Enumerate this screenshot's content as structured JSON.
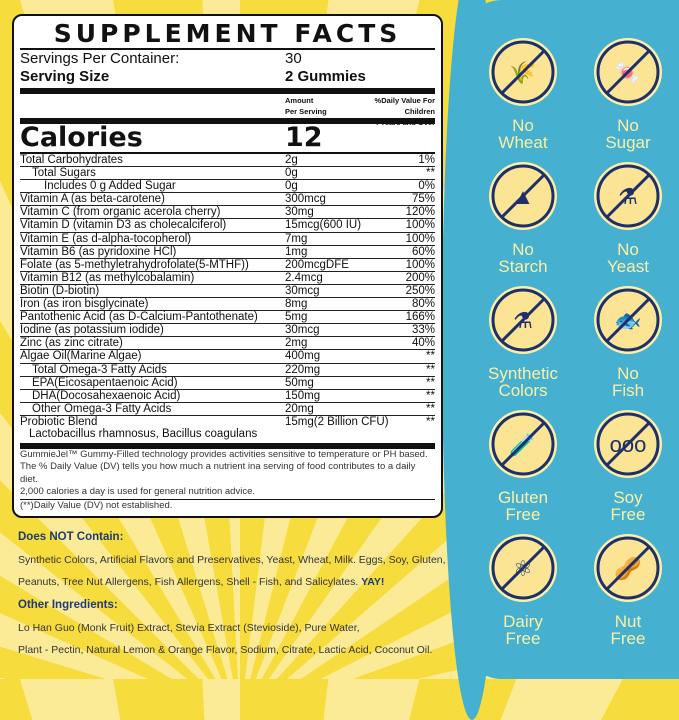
{
  "facts": {
    "title": "SUPPLEMENT FACTS",
    "servings_label": "Servings Per Container:",
    "servings_value": "30",
    "serving_size_label": "Serving Size",
    "serving_size_value": "2  Gummies",
    "amount_header": "Amount\nPer Serving",
    "dv_header_1": "%Daily Value For Children",
    "dv_header_2": "4 Years and Over",
    "calories_label": "Calories",
    "calories_value": "12",
    "rows": [
      {
        "name": "Total Carbohydrates",
        "amount": "2g",
        "dv": "1%",
        "indent": 0
      },
      {
        "name": "Total Sugars",
        "amount": "0g",
        "dv": "**",
        "indent": 1
      },
      {
        "name": "Includes 0 g Added Sugar",
        "amount": "0g",
        "dv": "0%",
        "indent": 2
      },
      {
        "name": "Vitamin A (as beta-carotene)",
        "amount": "300mcg",
        "dv": "75%",
        "indent": 0
      },
      {
        "name": "Vitamin C (from organic acerola cherry)",
        "amount": "30mg",
        "dv": "120%",
        "indent": 0
      },
      {
        "name": "Vitamin D (vitamin D3 as cholecalciferol)",
        "amount": "15mcg(600 IU)",
        "dv": "100%",
        "indent": 0
      },
      {
        "name": "Vitamin E (as d-alpha-tocopherol)",
        "amount": "7mg",
        "dv": "100%",
        "indent": 0
      },
      {
        "name": "Vitamin B6 (as pyridoxine HCl)",
        "amount": "1mg",
        "dv": "60%",
        "indent": 0
      },
      {
        "name": "Folate (as 5-methyletrahydrofolate(5-MTHF))",
        "amount": "200mcgDFE",
        "dv": "100%",
        "indent": 0
      },
      {
        "name": "Vitamin B12 (as methylcobalamin)",
        "amount": "2.4mcg",
        "dv": "200%",
        "indent": 0
      },
      {
        "name": "Biotin (D-biotin)",
        "amount": "30mcg",
        "dv": "250%",
        "indent": 0
      },
      {
        "name": "Iron (as iron bisglycinate)",
        "amount": "8mg",
        "dv": "80%",
        "indent": 0
      },
      {
        "name": "Pantothenic Acid (as D-Calcium-Pantothenate)",
        "amount": "5mg",
        "dv": "166%",
        "indent": 0
      },
      {
        "name": "Iodine (as potassium iodide)",
        "amount": "30mcg",
        "dv": "33%",
        "indent": 0
      },
      {
        "name": "Zinc (as zinc citrate)",
        "amount": "2mg",
        "dv": "40%",
        "indent": 0
      },
      {
        "name": "Algae Oil(Marine Algae)",
        "amount": "400mg",
        "dv": "**",
        "indent": 0
      },
      {
        "name": "Total Omega-3 Fatty Acids",
        "amount": "220mg",
        "dv": "**",
        "indent": 1
      },
      {
        "name": "EPA(Eicosapentaenoic Acid)",
        "amount": "50mg",
        "dv": "**",
        "indent": 1
      },
      {
        "name": "DHA(Docosahexaenoic Acid)",
        "amount": "150mg",
        "dv": "**",
        "indent": 1
      },
      {
        "name": "Other Omega-3 Fatty Acids",
        "amount": "20mg",
        "dv": "**",
        "indent": 1
      }
    ],
    "probiotic_name": "Probiotic Blend",
    "probiotic_sub": "Lactobacillus rhamnosus, Bacillus coagulans",
    "probiotic_amount": "15mg(2 Billion CFU)",
    "probiotic_dv": "**",
    "footnote_1": "GummieJel™ Gummy-Filled technology provides activities sensitive to temperature or PH based.",
    "footnote_2": "The % Daily Value (DV) tells you how much a nutrient ina serving of food contributes to a daily diet.",
    "footnote_3": "2,000 calories a day is used for general nutrition advice.",
    "footnote_4": "(**)Daily Value (DV) not established."
  },
  "does_not_contain": {
    "heading": "Does NOT Contain:",
    "text": "Synthetic Colors, Artificial Flavors and Preservatives, Yeast, Wheat, Milk. Eggs, Soy, Gluten, Peanuts, Tree Nut Allergens, Fish Allergens, Shell - Fish, and Salicylates.",
    "yay": "YAY!"
  },
  "other_ingredients": {
    "heading": "Other Ingredients:",
    "line1": "Lo Han Guo (Monk Fruit) Extract, Stevia Extract (Stevioside), Pure Water,",
    "line2": "Plant - Pectin, Natural Lemon & Orange Flavor, Sodium, Citrate,  Lactic Acid, Coconut Oil."
  },
  "badges": [
    {
      "l1": "No",
      "l2": "Wheat",
      "icon": "wheat-icon",
      "glyph": "🌾"
    },
    {
      "l1": "No",
      "l2": "Sugar",
      "icon": "candy-icon",
      "glyph": "🍬"
    },
    {
      "l1": "No",
      "l2": "Starch",
      "icon": "starch-pile-icon",
      "glyph": "▲"
    },
    {
      "l1": "No",
      "l2": "Yeast",
      "icon": "flask-icon",
      "glyph": "⚗"
    },
    {
      "l1": "Synthetic",
      "l2": "Colors",
      "icon": "beaker-icon",
      "glyph": "⚗"
    },
    {
      "l1": "No",
      "l2": "Fish",
      "icon": "fish-icon",
      "glyph": "🐟"
    },
    {
      "l1": "Gluten",
      "l2": "Free",
      "icon": "test-tube-icon",
      "glyph": "🧪"
    },
    {
      "l1": "Soy",
      "l2": "Free",
      "icon": "soybean-icon",
      "glyph": "ooo"
    },
    {
      "l1": "Dairy",
      "l2": "Free",
      "icon": "molecule-icon",
      "glyph": "⚛"
    },
    {
      "l1": "Nut",
      "l2": "Free",
      "icon": "peanut-icon",
      "glyph": "🥜"
    }
  ],
  "colors": {
    "blue_panel": "#45b0cf",
    "badge_fill": "#fbe594",
    "badge_stroke": "#1e2f6b",
    "badge_text": "#fbf0a6",
    "heading_blue": "#1e3a78",
    "yellow": "#f6dc3c"
  }
}
